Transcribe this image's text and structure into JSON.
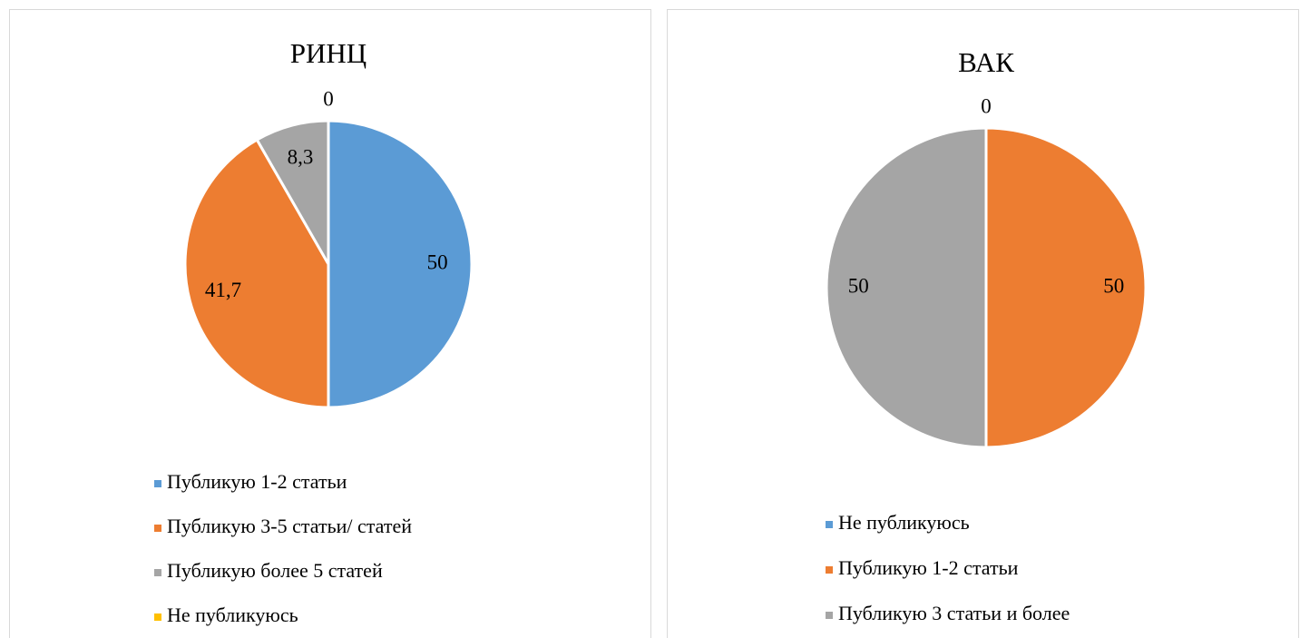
{
  "chart_data": [
    {
      "type": "pie",
      "title": "РИНЦ",
      "categories": [
        "Публикую 1-2 статьи",
        "Публикую 3-5 статьи/ статей",
        "Публикую более 5 статей",
        "Не публикуюсь"
      ],
      "values": [
        50,
        41.7,
        8.3,
        0
      ],
      "value_labels": [
        "50",
        "41,7",
        "8,3",
        "0"
      ],
      "colors": [
        "#5b9bd5",
        "#ed7d31",
        "#a5a5a5",
        "#ffc000"
      ],
      "legend": "bottom"
    },
    {
      "type": "pie",
      "title": "ВАК",
      "categories": [
        "Не публикуюсь",
        "Публикую 1-2 статьи",
        "Публикую 3 статьи и более"
      ],
      "values": [
        0,
        50,
        50
      ],
      "value_labels": [
        "0",
        "50",
        "50"
      ],
      "colors": [
        "#5b9bd5",
        "#ed7d31",
        "#a5a5a5"
      ],
      "legend": "bottom"
    }
  ]
}
